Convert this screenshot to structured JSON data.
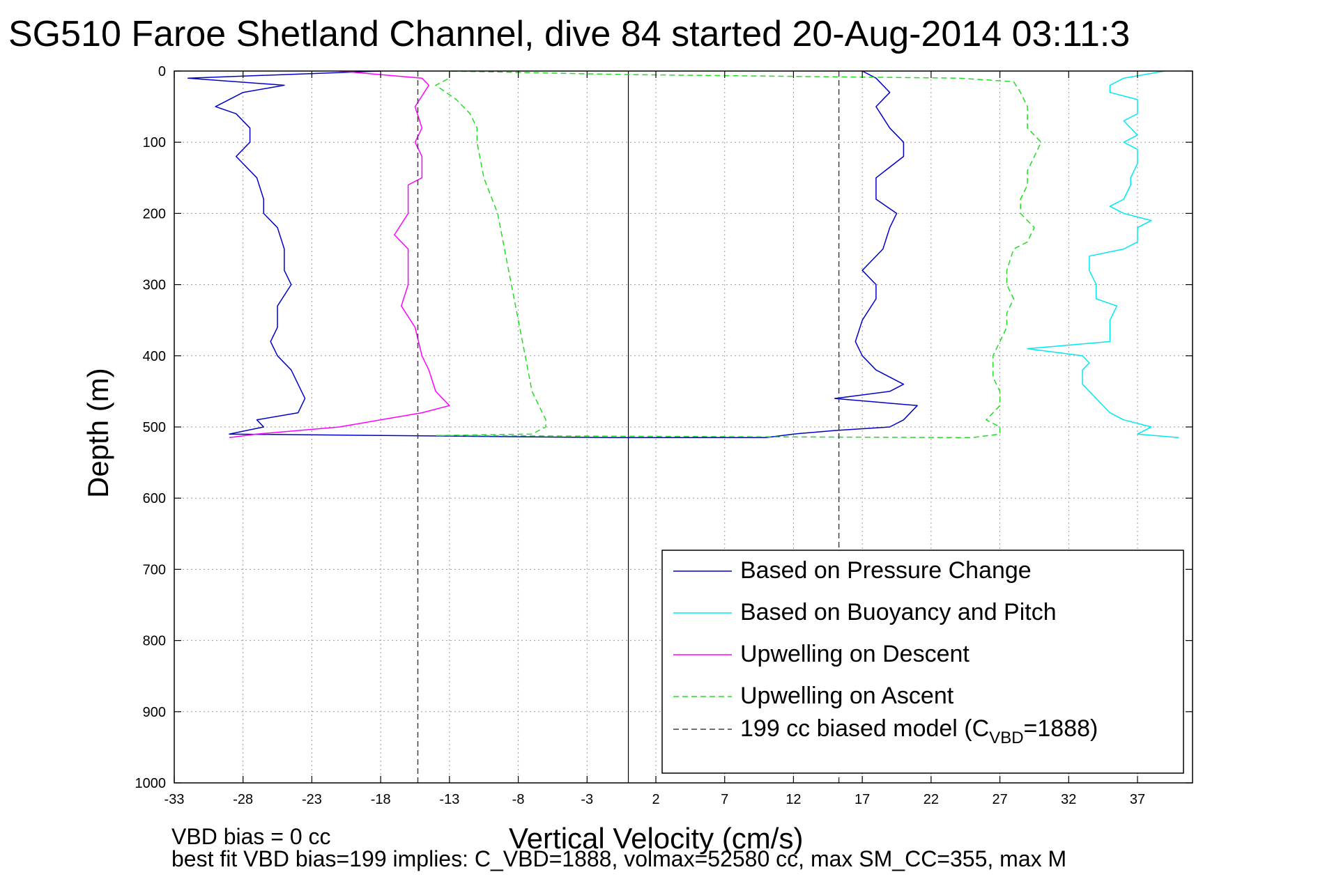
{
  "chart_data": {
    "type": "line",
    "title": "SG510 Faroe Shetland Channel, dive 84 started 20-Aug-2014 03:11:3",
    "xlabel": "Vertical Velocity (cm/s)",
    "ylabel": "Depth (m)",
    "xlim": [
      -33,
      41
    ],
    "ylim": [
      0,
      1000
    ],
    "y_reversed": true,
    "grid": true,
    "x_ticks": [
      -33,
      -28,
      -23,
      -18,
      -13,
      -8,
      -3,
      2,
      7,
      12,
      17,
      22,
      27,
      32,
      37
    ],
    "y_ticks": [
      0,
      100,
      200,
      300,
      400,
      500,
      600,
      700,
      800,
      900,
      1000
    ],
    "legend_position": "bottom-right",
    "footnotes": [
      "VBD bias = 0 cc",
      "best fit VBD bias=199 implies: C_VBD=1888, volmax=52580 cc, max SM_CC=355, max M"
    ],
    "series": [
      {
        "name": "Based on Pressure Change",
        "color": "#0000c8",
        "style": "solid",
        "depth": [
          0,
          10,
          20,
          30,
          50,
          60,
          80,
          100,
          120,
          150,
          180,
          200,
          220,
          250,
          280,
          300,
          330,
          360,
          380,
          400,
          420,
          440,
          460,
          480,
          490,
          500,
          510,
          515,
          515,
          510,
          505,
          500,
          490,
          470,
          460,
          450,
          440,
          420,
          400,
          380,
          350,
          320,
          300,
          280,
          250,
          220,
          200,
          180,
          150,
          120,
          100,
          80,
          50,
          30,
          10,
          0
        ],
        "velocity": [
          -18,
          -32,
          -25,
          -28,
          -30,
          -28.5,
          -27.5,
          -27.5,
          -28.5,
          -27,
          -26.5,
          -26.5,
          -25.5,
          -25,
          -25,
          -24.5,
          -25.5,
          -25.5,
          -26,
          -25.5,
          -24.5,
          -24,
          -23.5,
          -24,
          -27,
          -26.5,
          -29,
          -1,
          10,
          12,
          15,
          19,
          20,
          21,
          15,
          19,
          20,
          18,
          17,
          16.5,
          17,
          18,
          18,
          17,
          18.5,
          19,
          19.5,
          18,
          18,
          20,
          20,
          19,
          18,
          19,
          18,
          17
        ]
      },
      {
        "name": "Based on Buoyancy and Pitch",
        "color": "#00e8f0",
        "style": "solid",
        "depth": [
          515,
          510,
          500,
          490,
          480,
          460,
          440,
          420,
          410,
          400,
          390,
          380,
          370,
          350,
          330,
          320,
          300,
          280,
          260,
          250,
          240,
          220,
          210,
          200,
          190,
          180,
          160,
          150,
          130,
          110,
          100,
          90,
          70,
          60,
          50,
          40,
          30,
          20,
          10,
          0
        ],
        "velocity": [
          40,
          37,
          38,
          36,
          35,
          34,
          33,
          33,
          33.5,
          33,
          29,
          35,
          35,
          35,
          35.5,
          34,
          34,
          33.5,
          33.5,
          36,
          37,
          37,
          38,
          36,
          35,
          36,
          36.5,
          36.5,
          37,
          37,
          36,
          37,
          36,
          37,
          37,
          37,
          35,
          35,
          36,
          39
        ]
      },
      {
        "name": "Upwelling on Descent",
        "color": "#ff00ff",
        "style": "solid",
        "depth": [
          0,
          10,
          20,
          50,
          80,
          100,
          120,
          150,
          160,
          200,
          230,
          250,
          280,
          300,
          330,
          360,
          400,
          420,
          450,
          470,
          480,
          490,
          500,
          505,
          510,
          515
        ],
        "velocity": [
          -21,
          -15,
          -14.5,
          -15.5,
          -15,
          -15.5,
          -15,
          -15,
          -16,
          -16,
          -17,
          -16,
          -16,
          -16,
          -16.5,
          -15.5,
          -15,
          -14.5,
          -14,
          -13,
          -15,
          -18,
          -21,
          -24,
          -27,
          -29
        ]
      },
      {
        "name": "Upwelling on Ascent",
        "color": "#22dd22",
        "style": "dashed",
        "depth": [
          0,
          10,
          20,
          40,
          60,
          80,
          100,
          150,
          200,
          250,
          300,
          350,
          400,
          450,
          470,
          490,
          500,
          505,
          510,
          512,
          515,
          510,
          500,
          490,
          470,
          450,
          430,
          400,
          380,
          360,
          340,
          320,
          300,
          280,
          250,
          240,
          220,
          200,
          180,
          160,
          140,
          120,
          100,
          80,
          50,
          30,
          15,
          10,
          5,
          0
        ],
        "velocity": [
          -13,
          -13,
          -14,
          -12.5,
          -11.5,
          -11,
          -11,
          -10.5,
          -9.5,
          -9,
          -8.5,
          -8,
          -7.5,
          -7,
          -6.5,
          -6,
          -6,
          -6.5,
          -7,
          -14,
          25,
          27,
          27,
          26,
          27,
          27,
          26.5,
          26.5,
          27,
          27.5,
          27.5,
          28,
          27.5,
          27.5,
          28,
          29,
          29.5,
          28.5,
          28.5,
          29,
          29,
          29.5,
          30,
          29,
          29,
          28.5,
          28,
          24,
          0,
          -13
        ]
      },
      {
        "name": "199 cc biased model (C",
        "name_subscript": "VBD",
        "name_suffix": "=1888)",
        "color": "#404040",
        "style": "dashed",
        "depth": [
          0,
          1000
        ],
        "velocity": [
          -15.3,
          -15.3
        ],
        "velocity_ascent": [
          15.3,
          15.3
        ]
      }
    ],
    "zero_line": 0
  }
}
